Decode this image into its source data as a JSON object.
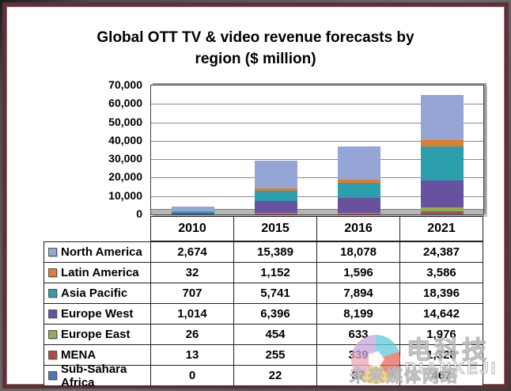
{
  "title_line1": "Global OTT TV & video revenue forecasts by",
  "title_line2": "region ($ million)",
  "chart_data": {
    "type": "bar",
    "stacked": true,
    "title": "Global OTT TV & video revenue forecasts by region ($ million)",
    "categories": [
      "2010",
      "2015",
      "2016",
      "2021"
    ],
    "series": [
      {
        "name": "North America",
        "color": "#95A5D6",
        "values": [
          2674,
          15389,
          18078,
          24387
        ]
      },
      {
        "name": "Latin America",
        "color": "#E07E2E",
        "values": [
          32,
          1152,
          1596,
          3586
        ]
      },
      {
        "name": "Asia Pacific",
        "color": "#2BA0AC",
        "values": [
          707,
          5741,
          7894,
          18396
        ]
      },
      {
        "name": "Europe West",
        "color": "#68519E",
        "values": [
          1014,
          6396,
          8199,
          14642
        ]
      },
      {
        "name": "Europe East",
        "color": "#92AE4C",
        "values": [
          26,
          454,
          633,
          1976
        ]
      },
      {
        "name": "MENA",
        "color": "#B84743",
        "values": [
          13,
          255,
          339,
          1328
        ]
      },
      {
        "name": "Sub-Sahara Africa",
        "color": "#4C74B9",
        "values": [
          0,
          22,
          37,
          467
        ]
      }
    ],
    "stack_order_bottom_to_top": [
      "Sub-Sahara Africa",
      "MENA",
      "Europe East",
      "Europe West",
      "Asia Pacific",
      "Latin America",
      "North America"
    ],
    "ylim": [
      0,
      70000
    ],
    "ytick_step": 10000,
    "yticks": [
      "70,000",
      "60,000",
      "50,000",
      "40,000",
      "30,000",
      "20,000",
      "10,000",
      "0"
    ],
    "xlabel": "",
    "ylabel": "",
    "grid": true,
    "legend_position": "data-table-left-keys"
  },
  "table": {
    "header_years": [
      "2010",
      "2015",
      "2016",
      "2021"
    ],
    "rows": [
      {
        "label": "North America",
        "color": "#95A5D6",
        "values": [
          "2,674",
          "15,389",
          "18,078",
          "24,387"
        ]
      },
      {
        "label": "Latin America",
        "color": "#E07E2E",
        "values": [
          "32",
          "1,152",
          "1,596",
          "3,586"
        ]
      },
      {
        "label": "Asia Pacific",
        "color": "#2BA0AC",
        "values": [
          "707",
          "5,741",
          "7,894",
          "18,396"
        ]
      },
      {
        "label": "Europe West",
        "color": "#68519E",
        "values": [
          "1,014",
          "6,396",
          "8,199",
          "14,642"
        ]
      },
      {
        "label": "Europe East",
        "color": "#92AE4C",
        "values": [
          "26",
          "454",
          "633",
          "1,976"
        ]
      },
      {
        "label": "MENA",
        "color": "#B84743",
        "values": [
          "13",
          "255",
          "339",
          "1,328"
        ]
      },
      {
        "label": "Sub-Sahara Africa",
        "color": "#4C74B9",
        "values": [
          "0",
          "22",
          "37",
          "467"
        ]
      }
    ]
  },
  "watermark": {
    "brand": "电科技",
    "latin": "DIANKEJI",
    "tagline": "未来媒体网络",
    "logo_colors": [
      "#62C9DC",
      "#E8685E",
      "#F2CD4D",
      "#E9A9B8",
      "#CBA7DF"
    ]
  },
  "frame_color": "#5F3038"
}
